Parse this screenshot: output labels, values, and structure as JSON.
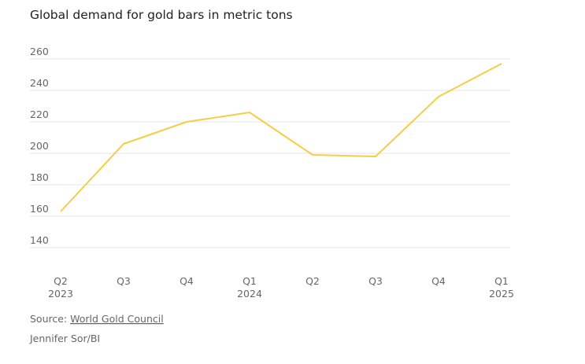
{
  "chart_data": {
    "type": "line",
    "title": "Global demand for gold bars in metric tons",
    "categories": [
      "Q2 2023",
      "Q3",
      "Q4",
      "Q1 2024",
      "Q2",
      "Q3",
      "Q4",
      "Q1 2025"
    ],
    "series": [
      {
        "name": "Gold bar demand",
        "color": "#f7cd45",
        "values": [
          163,
          206,
          220,
          226,
          199,
          198,
          236,
          257
        ]
      }
    ],
    "ylim": [
      140,
      260
    ],
    "yticks": [
      140,
      160,
      180,
      200,
      220,
      240,
      260
    ],
    "grid": true,
    "source_label": "Source:",
    "source": "World Gold Council",
    "credit": "Jennifer Sor/BI"
  }
}
